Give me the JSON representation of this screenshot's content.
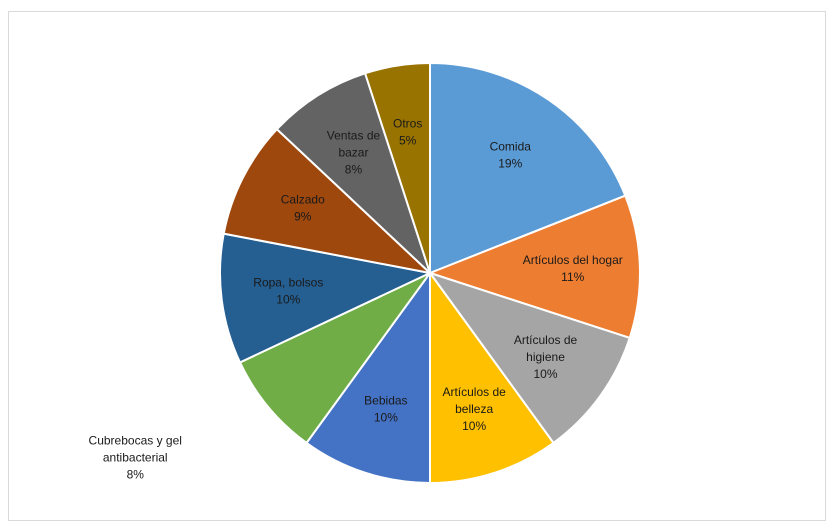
{
  "chart_data": {
    "type": "pie",
    "title": "",
    "slices": [
      {
        "name": "Comida",
        "label_lines": [
          "Comida"
        ],
        "value": 19,
        "value_label": "19%",
        "color": "#5B9BD5",
        "text_color": "#1a1a1a"
      },
      {
        "name": "Artículos del hogar",
        "label_lines": [
          "Artículos del hogar"
        ],
        "value": 11,
        "value_label": "11%",
        "color": "#ED7D31",
        "text_color": "#1a1a1a"
      },
      {
        "name": "Artículos de higiene",
        "label_lines": [
          "Artículos de",
          "higiene"
        ],
        "value": 10,
        "value_label": "10%",
        "color": "#A5A5A5",
        "text_color": "#1a1a1a"
      },
      {
        "name": "Artículos de belleza",
        "label_lines": [
          "Artículos de",
          "belleza"
        ],
        "value": 10,
        "value_label": "10%",
        "color": "#FFC000",
        "text_color": "#1a1a1a"
      },
      {
        "name": "Bebidas",
        "label_lines": [
          "Bebidas"
        ],
        "value": 10,
        "value_label": "10%",
        "color": "#4472C4",
        "text_color": "#1a1a1a"
      },
      {
        "name": "Cubrebocas y gel antibacterial",
        "label_lines": [
          "Cubrebocas y gel",
          "antibacterial"
        ],
        "value": 8,
        "value_label": "8%",
        "color": "#70AD47",
        "text_color": "#1a1a1a",
        "outside": true
      },
      {
        "name": "Ropa, bolsos",
        "label_lines": [
          "Ropa, bolsos"
        ],
        "value": 10,
        "value_label": "10%",
        "color": "#255E91",
        "text_color": "#1a1a1a"
      },
      {
        "name": "Calzado",
        "label_lines": [
          "Calzado"
        ],
        "value": 9,
        "value_label": "9%",
        "color": "#9E480E",
        "text_color": "#1a1a1a"
      },
      {
        "name": "Ventas de bazar",
        "label_lines": [
          "Ventas de",
          "bazar"
        ],
        "value": 8,
        "value_label": "8%",
        "color": "#636363",
        "text_color": "#1a1a1a"
      },
      {
        "name": "Otros",
        "label_lines": [
          "Otros"
        ],
        "value": 5,
        "value_label": "5%",
        "color": "#997300",
        "text_color": "#1a1a1a"
      }
    ],
    "start": "12 o'clock",
    "direction": "clockwise",
    "slice_border_color": "#ffffff",
    "legend": "none"
  }
}
